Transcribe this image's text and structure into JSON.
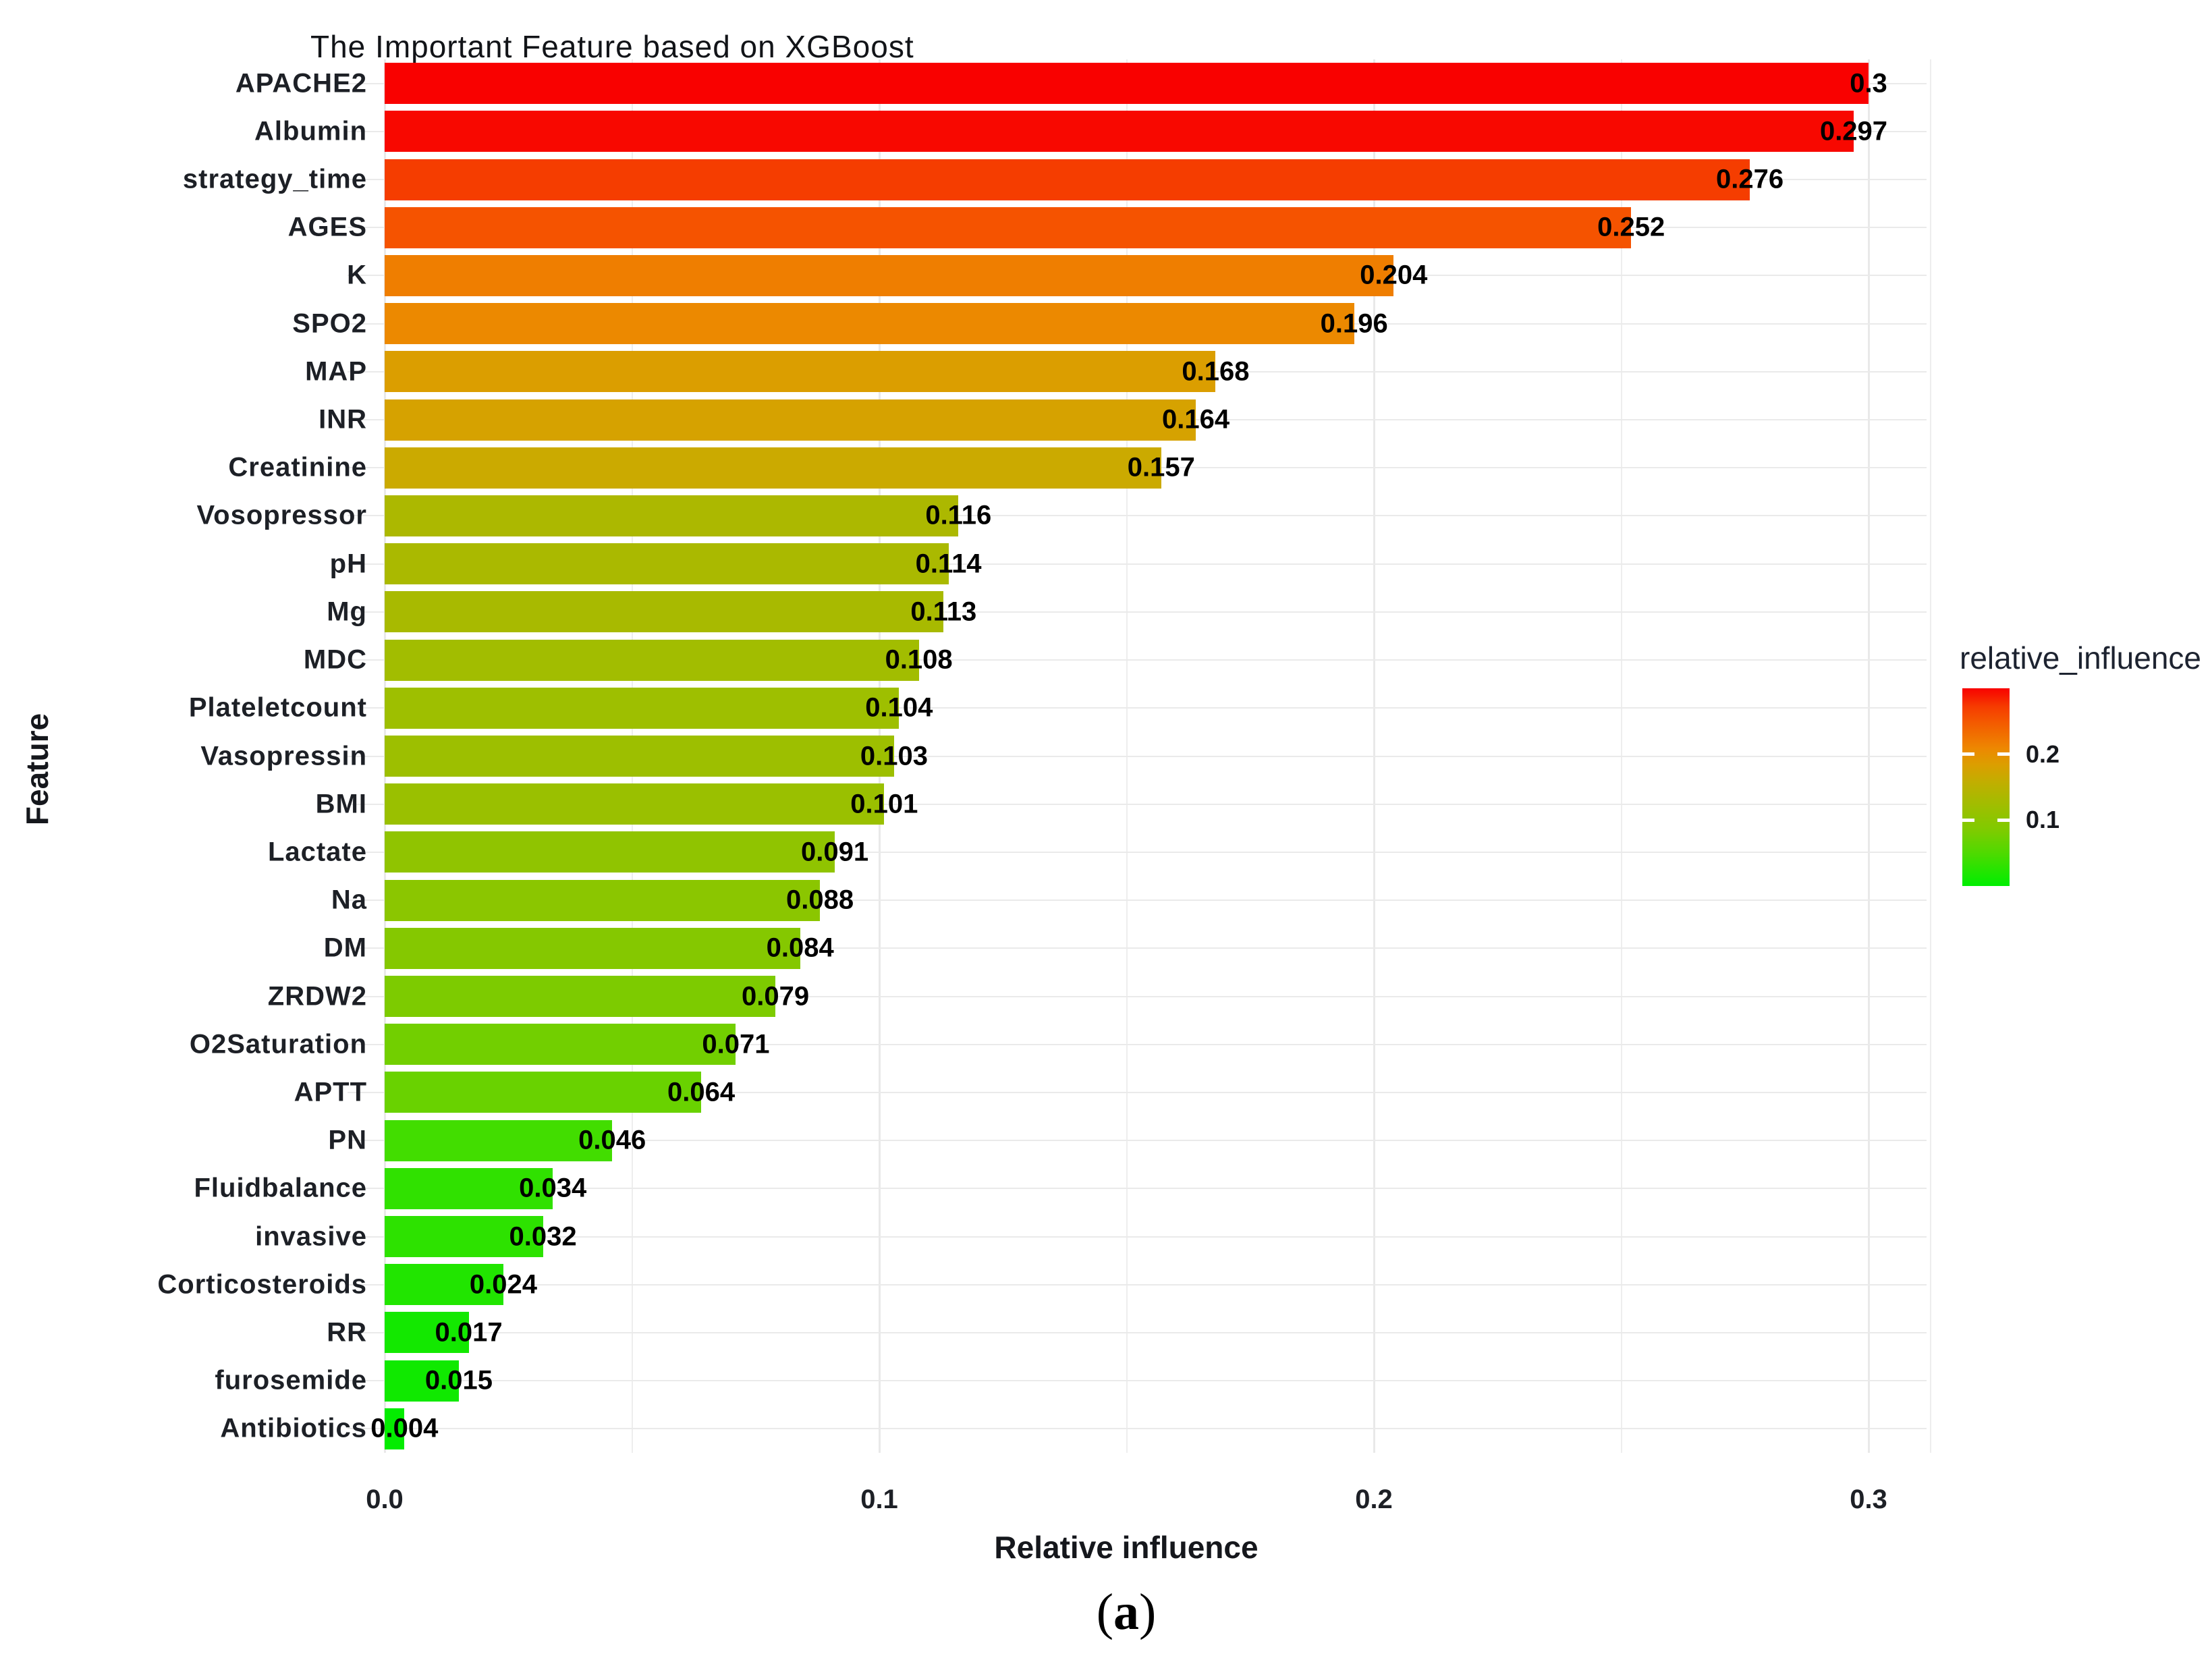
{
  "title": "The Important Feature based on XGBoost",
  "axes": {
    "x_label": "Relative influence",
    "y_label": "Feature"
  },
  "legend": {
    "title": "relative_influence",
    "tick_labels": [
      "0.2",
      "0.1"
    ]
  },
  "caption": {
    "open": "(",
    "letter": "a",
    "close": ")"
  },
  "chart_data": {
    "type": "bar",
    "orientation": "horizontal",
    "title": "The Important Feature based on XGBoost",
    "xlabel": "Relative influence",
    "ylabel": "Feature",
    "xlim": [
      0,
      0.3125
    ],
    "x_tick_values": [
      0,
      0.1,
      0.2,
      0.3
    ],
    "x_tick_labels": [
      "0.0",
      "0.1",
      "0.2",
      "0.3"
    ],
    "minor_grid_values": [
      0.05,
      0.15,
      0.25,
      0.3125
    ],
    "grid": "vertical-major-minor + horizontal-category",
    "legend": {
      "title": "relative_influence",
      "position": "right",
      "gradient_top_to_bottom": [
        "#f80200",
        "#ee8601",
        "#a6bb00",
        "#00ee00"
      ],
      "tick_values": [
        0.2,
        0.1
      ],
      "range_top_to_bottom": [
        0.3,
        0.0
      ]
    },
    "categories": [
      "APACHE2",
      "Albumin",
      "strategy_time",
      "AGES",
      "K",
      "SPO2",
      "MAP",
      "INR",
      "Creatinine",
      "Vosopressor",
      "pH",
      "Mg",
      "MDC",
      "Plateletcount",
      "Vasopressin",
      "BMI",
      "Lactate",
      "Na",
      "DM",
      "ZRDW2",
      "O2Saturation",
      "APTT",
      "PN",
      "Fluidbalance",
      "invasive",
      "Corticosteroids",
      "RR",
      "furosemide",
      "Antibiotics"
    ],
    "values": [
      0.3,
      0.297,
      0.276,
      0.252,
      0.204,
      0.196,
      0.168,
      0.164,
      0.157,
      0.116,
      0.114,
      0.113,
      0.108,
      0.104,
      0.103,
      0.101,
      0.091,
      0.088,
      0.084,
      0.079,
      0.071,
      0.064,
      0.046,
      0.034,
      0.032,
      0.024,
      0.017,
      0.015,
      0.004
    ],
    "value_labels": [
      "0.3",
      "0.297",
      "0.276",
      "0.252",
      "0.204",
      "0.196",
      "0.168",
      "0.164",
      "0.157",
      "0.116",
      "0.114",
      "0.113",
      "0.108",
      "0.104",
      "0.103",
      "0.101",
      "0.091",
      "0.088",
      "0.084",
      "0.079",
      "0.071",
      "0.064",
      "0.046",
      "0.034",
      "0.032",
      "0.024",
      "0.017",
      "0.015",
      "0.004"
    ],
    "bar_colors": [
      "#f90100",
      "#f80800",
      "#f53d00",
      "#f55300",
      "#ef7e00",
      "#ec8900",
      "#db9e00",
      "#d6a200",
      "#cbaa00",
      "#acb800",
      "#aab900",
      "#a8ba00",
      "#a2bd00",
      "#9ebf00",
      "#9dbf00",
      "#9ac000",
      "#90c400",
      "#8bc600",
      "#85c800",
      "#7dcb00",
      "#72cf00",
      "#69d200",
      "#42dd00",
      "#30e100",
      "#2de200",
      "#21e500",
      "#13e800",
      "#10e900",
      "#04ec00"
    ]
  }
}
